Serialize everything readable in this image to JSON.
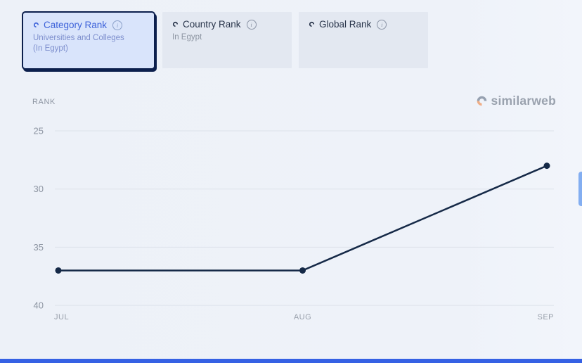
{
  "tabs": {
    "category": {
      "label": "Category Rank",
      "subtitle_line1": "Universities and Colleges",
      "subtitle_line2": "(In Egypt)",
      "selected": true
    },
    "country": {
      "label": "Country Rank",
      "subtitle": "In Egypt",
      "selected": false
    },
    "global": {
      "label": "Global Rank",
      "selected": false
    }
  },
  "icons": {
    "info_glyph": "i",
    "brand_mark": "similarweb-swirl"
  },
  "chart_header": {
    "axis_label": "RANK",
    "brand": "similarweb"
  },
  "colors": {
    "accent_blue": "#3d62d9",
    "selected_tab_bg": "#d9e4fb",
    "selected_tab_border": "#0c1f4d",
    "line": "#152947",
    "grid": "#dde2ea",
    "tick_text": "#8d95a2",
    "brand_orange": "#efae87",
    "brand_gray": "#96a0b0",
    "scrollbar": "#83aef1",
    "bottom_bar": "#3561e4"
  },
  "chart_data": {
    "type": "line",
    "title": "",
    "x": [
      "JUL",
      "AUG",
      "SEP"
    ],
    "series": [
      {
        "name": "Category Rank",
        "values": [
          37,
          37,
          28
        ]
      }
    ],
    "ylabel": "RANK",
    "xlabel": "",
    "yticks": [
      25,
      30,
      35,
      40
    ],
    "ylim": [
      25,
      40
    ],
    "y_inverted": true,
    "grid": true,
    "legend": false,
    "line_color": "#152947",
    "point_radius": 4.5
  }
}
